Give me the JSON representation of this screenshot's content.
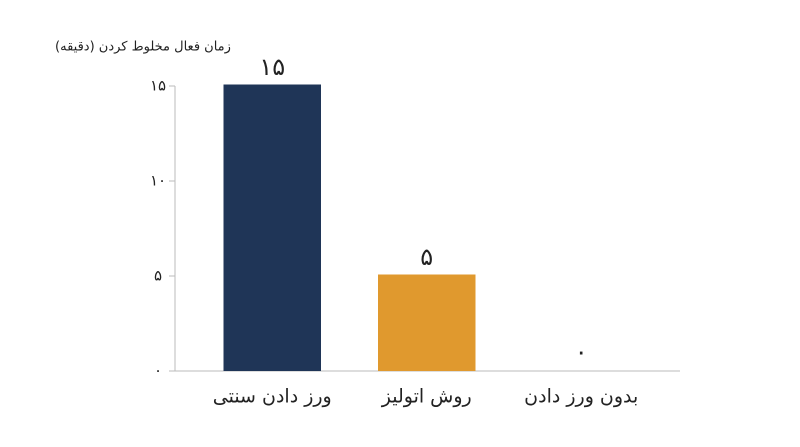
{
  "chart_data": {
    "type": "bar",
    "y_axis_label": "زمان فعال مخلوط کردن (دقیقه)",
    "categories": [
      "ورز دادن سنتی",
      "روش اتولیز",
      "بدون ورز دادن"
    ],
    "values": [
      15,
      5,
      0
    ],
    "value_labels": [
      "۱۵",
      "۵",
      "۰"
    ],
    "colors": [
      "#1f3557",
      "#e0992e",
      "#1f3557"
    ],
    "ylim": [
      0,
      15
    ],
    "yticks": [
      {
        "value": 0,
        "label": "۰"
      },
      {
        "value": 5,
        "label": "۵"
      },
      {
        "value": 10,
        "label": "۱۰"
      },
      {
        "value": 15,
        "label": "۱۵"
      }
    ],
    "grid": false
  }
}
